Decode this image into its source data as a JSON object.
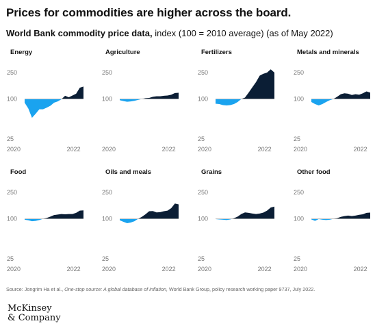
{
  "header": {
    "title": "Prices for commodities are higher across the board.",
    "subtitle_bold": "World Bank commodity price data,",
    "subtitle_rest": " index (100 = 2010 average) (as of May 2022)"
  },
  "footer": {
    "source_prefix": "Source: Jongrim Ha et al., ",
    "source_italic": "One-stop source: A global database of inflation,",
    "source_suffix": " World Bank Group, policy research working paper 9737, July 2022.",
    "logo_line1": "McKinsey",
    "logo_line2": "& Company"
  },
  "colors": {
    "above": "#0b1e35",
    "below": "#1aa3ef",
    "baseline": "#b0b0b0",
    "tick_text": "#777777"
  },
  "chart_data": [
    {
      "type": "area",
      "title": "Energy",
      "x_ticks": [
        "2020",
        "2022"
      ],
      "y_ticks": [
        25,
        100,
        250
      ],
      "baseline": 100,
      "ylim": [
        25,
        250
      ],
      "x": [
        2020.0,
        2020.15,
        2020.3,
        2020.45,
        2020.6,
        2020.75,
        2020.9,
        2021.05,
        2021.2,
        2021.35,
        2021.5,
        2021.65,
        2021.8,
        2021.95,
        2022.1,
        2022.25,
        2022.4
      ],
      "values": [
        88,
        72,
        52,
        60,
        70,
        70,
        74,
        79,
        88,
        92,
        99,
        112,
        106,
        113,
        120,
        148,
        154
      ]
    },
    {
      "type": "area",
      "title": "Agriculture",
      "x_ticks": [
        "2020",
        "2022"
      ],
      "y_ticks": [
        250,
        100
      ],
      "baseline": 100,
      "ylim": [
        25,
        250
      ],
      "x": [
        2020.0,
        2020.15,
        2020.3,
        2020.45,
        2020.6,
        2020.75,
        2020.9,
        2021.05,
        2021.2,
        2021.35,
        2021.5,
        2021.65,
        2021.8,
        2021.95,
        2022.1,
        2022.25,
        2022.4
      ],
      "values": [
        96,
        93,
        91,
        92,
        94,
        97,
        100,
        103,
        104,
        108,
        110,
        110,
        112,
        113,
        116,
        123,
        124
      ]
    },
    {
      "type": "area",
      "title": "Fertilizers",
      "x_ticks": [
        "2020",
        "2022"
      ],
      "y_ticks": [
        250,
        100,
        25
      ],
      "baseline": 100,
      "ylim": [
        25,
        250
      ],
      "x": [
        2020.0,
        2020.15,
        2020.3,
        2020.45,
        2020.6,
        2020.75,
        2020.9,
        2021.05,
        2021.2,
        2021.35,
        2021.5,
        2021.65,
        2021.8,
        2021.95,
        2022.1,
        2022.25,
        2022.4
      ],
      "values": [
        85,
        84,
        81,
        80,
        81,
        84,
        90,
        100,
        105,
        125,
        150,
        180,
        225,
        240,
        250,
        280,
        250
      ]
    },
    {
      "type": "area",
      "title": "Metals and minerals",
      "x_ticks": [
        "2020",
        "2022"
      ],
      "y_ticks": [
        250,
        100,
        25
      ],
      "baseline": 100,
      "ylim": [
        25,
        250
      ],
      "x": [
        2020.0,
        2020.15,
        2020.3,
        2020.45,
        2020.6,
        2020.75,
        2020.9,
        2021.05,
        2021.2,
        2021.35,
        2021.5,
        2021.65,
        2021.8,
        2021.95,
        2022.1,
        2022.25,
        2022.4
      ],
      "values": [
        90,
        84,
        80,
        84,
        90,
        96,
        100,
        108,
        118,
        122,
        120,
        115,
        118,
        116,
        122,
        130,
        125
      ]
    },
    {
      "type": "area",
      "title": "Food",
      "x_ticks": [
        "2020",
        "2022"
      ],
      "y_ticks": [
        250,
        100,
        25
      ],
      "baseline": 100,
      "ylim": [
        25,
        250
      ],
      "x": [
        2020.0,
        2020.15,
        2020.3,
        2020.45,
        2020.6,
        2020.75,
        2020.9,
        2021.05,
        2021.2,
        2021.35,
        2021.5,
        2021.65,
        2021.8,
        2021.95,
        2022.1,
        2022.25,
        2022.4
      ],
      "values": [
        97,
        95,
        92,
        93,
        96,
        100,
        103,
        108,
        114,
        116,
        118,
        117,
        118,
        118,
        123,
        133,
        134
      ]
    },
    {
      "type": "area",
      "title": "Oils and meals",
      "x_ticks": [
        "2020",
        "2022"
      ],
      "y_ticks": [
        250,
        100,
        25
      ],
      "baseline": 100,
      "ylim": [
        25,
        250
      ],
      "x": [
        2020.0,
        2020.15,
        2020.3,
        2020.45,
        2020.6,
        2020.75,
        2020.9,
        2021.05,
        2021.2,
        2021.35,
        2021.5,
        2021.65,
        2021.8,
        2021.95,
        2022.1,
        2022.25,
        2022.4
      ],
      "values": [
        95,
        90,
        86,
        88,
        92,
        100,
        107,
        117,
        130,
        131,
        125,
        126,
        130,
        133,
        145,
        170,
        165
      ]
    },
    {
      "type": "area",
      "title": "Grains",
      "x_ticks": [
        "2020",
        "2022"
      ],
      "y_ticks": [
        250,
        100,
        25
      ],
      "baseline": 100,
      "ylim": [
        25,
        250
      ],
      "x": [
        2020.0,
        2020.15,
        2020.3,
        2020.45,
        2020.6,
        2020.75,
        2020.9,
        2021.05,
        2021.2,
        2021.35,
        2021.5,
        2021.65,
        2021.8,
        2021.95,
        2022.1,
        2022.25,
        2022.4
      ],
      "values": [
        99,
        98,
        97,
        96,
        98,
        102,
        108,
        118,
        125,
        123,
        120,
        118,
        120,
        124,
        133,
        148,
        153
      ]
    },
    {
      "type": "area",
      "title": "Other food",
      "x_ticks": [
        "2020",
        "2022"
      ],
      "y_ticks": [
        250,
        100,
        25
      ],
      "baseline": 100,
      "ylim": [
        25,
        250
      ],
      "x": [
        2020.0,
        2020.15,
        2020.3,
        2020.45,
        2020.6,
        2020.75,
        2020.9,
        2021.05,
        2021.2,
        2021.35,
        2021.5,
        2021.65,
        2021.8,
        2021.95,
        2022.1,
        2022.25,
        2022.4
      ],
      "values": [
        98,
        93,
        99,
        97,
        96,
        97,
        100,
        102,
        107,
        110,
        112,
        110,
        112,
        115,
        117,
        123,
        124
      ]
    }
  ]
}
